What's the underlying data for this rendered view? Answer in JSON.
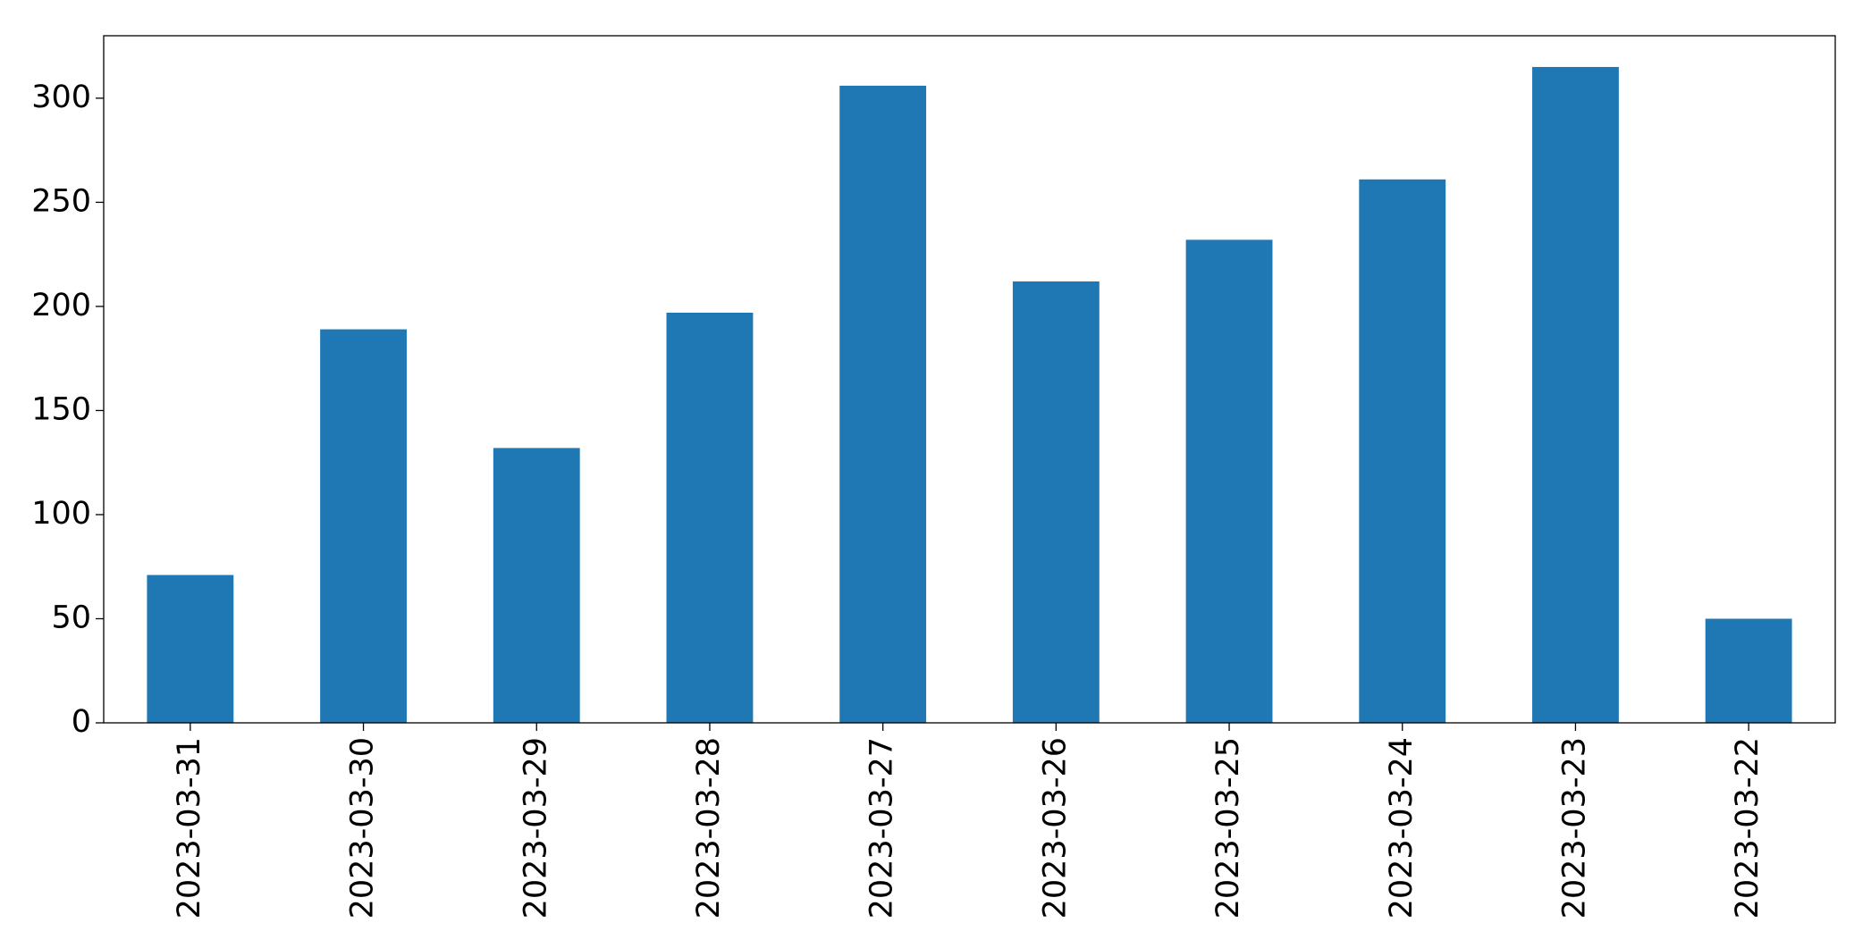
{
  "chart_data": {
    "type": "bar",
    "categories": [
      "2023-03-31",
      "2023-03-30",
      "2023-03-29",
      "2023-03-28",
      "2023-03-27",
      "2023-03-26",
      "2023-03-25",
      "2023-03-24",
      "2023-03-23",
      "2023-03-22"
    ],
    "values": [
      71,
      189,
      132,
      197,
      306,
      212,
      232,
      261,
      315,
      50
    ],
    "color": "#1f77b4",
    "ylim": [
      0,
      330
    ],
    "yticks": [
      0,
      50,
      100,
      150,
      200,
      250,
      300
    ],
    "grid": false
  }
}
